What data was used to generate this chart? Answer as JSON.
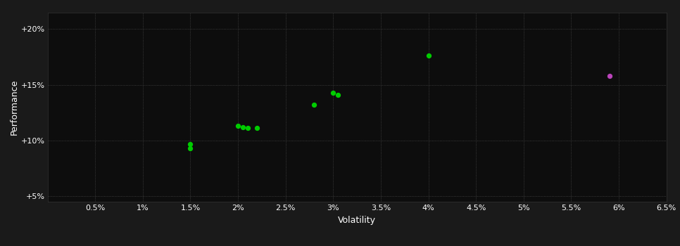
{
  "background_color": "#1a1a1a",
  "plot_bg_color": "#0d0d0d",
  "grid_color": "#555555",
  "text_color": "#ffffff",
  "xlabel": "Volatility",
  "ylabel": "Performance",
  "xlim": [
    0.0,
    0.065
  ],
  "ylim": [
    0.045,
    0.215
  ],
  "xticks": [
    0.005,
    0.01,
    0.015,
    0.02,
    0.025,
    0.03,
    0.035,
    0.04,
    0.045,
    0.05,
    0.055,
    0.06,
    0.065
  ],
  "yticks": [
    0.05,
    0.1,
    0.15,
    0.2
  ],
  "ytick_labels": [
    "+5%",
    "+10%",
    "+15%",
    "+20%"
  ],
  "xtick_labels": [
    "0.5%",
    "1%",
    "1.5%",
    "2%",
    "2.5%",
    "3%",
    "3.5%",
    "4%",
    "4.5%",
    "5%",
    "5.5%",
    "6%",
    "6.5%"
  ],
  "green_points": [
    [
      0.015,
      0.097
    ],
    [
      0.015,
      0.093
    ],
    [
      0.02,
      0.113
    ],
    [
      0.0205,
      0.112
    ],
    [
      0.021,
      0.111
    ],
    [
      0.022,
      0.111
    ],
    [
      0.028,
      0.132
    ],
    [
      0.03,
      0.143
    ],
    [
      0.0305,
      0.141
    ],
    [
      0.04,
      0.176
    ]
  ],
  "magenta_points": [
    [
      0.059,
      0.158
    ]
  ],
  "point_size": 18,
  "font_size_ticks": 8,
  "font_size_label": 9
}
